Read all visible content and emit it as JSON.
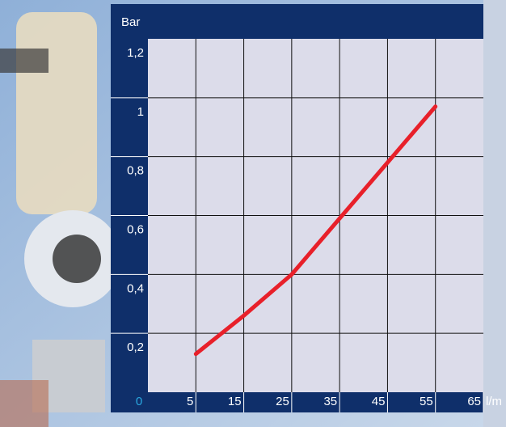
{
  "chart_data": {
    "type": "line",
    "y_label": "Bar",
    "x_label": "l/m",
    "x": [
      5,
      15,
      25,
      35,
      45,
      55
    ],
    "series": [
      {
        "color": "#e8202a",
        "values": [
          0.13,
          0.26,
          0.4,
          0.59,
          0.78,
          0.97
        ]
      }
    ],
    "xlim": [
      -5,
      65
    ],
    "xticks": [
      5,
      15,
      25,
      35,
      45,
      55,
      65
    ],
    "ylim": [
      0,
      1.2
    ],
    "yticks": [
      {
        "value": 0,
        "label": "0"
      },
      {
        "value": 0.2,
        "label": "0,2"
      },
      {
        "value": 0.4,
        "label": "0,4"
      },
      {
        "value": 0.6,
        "label": "0,6"
      },
      {
        "value": 0.8,
        "label": "0,8"
      },
      1,
      {
        "value": 1.2,
        "label": "1,2"
      }
    ],
    "grid": true
  }
}
